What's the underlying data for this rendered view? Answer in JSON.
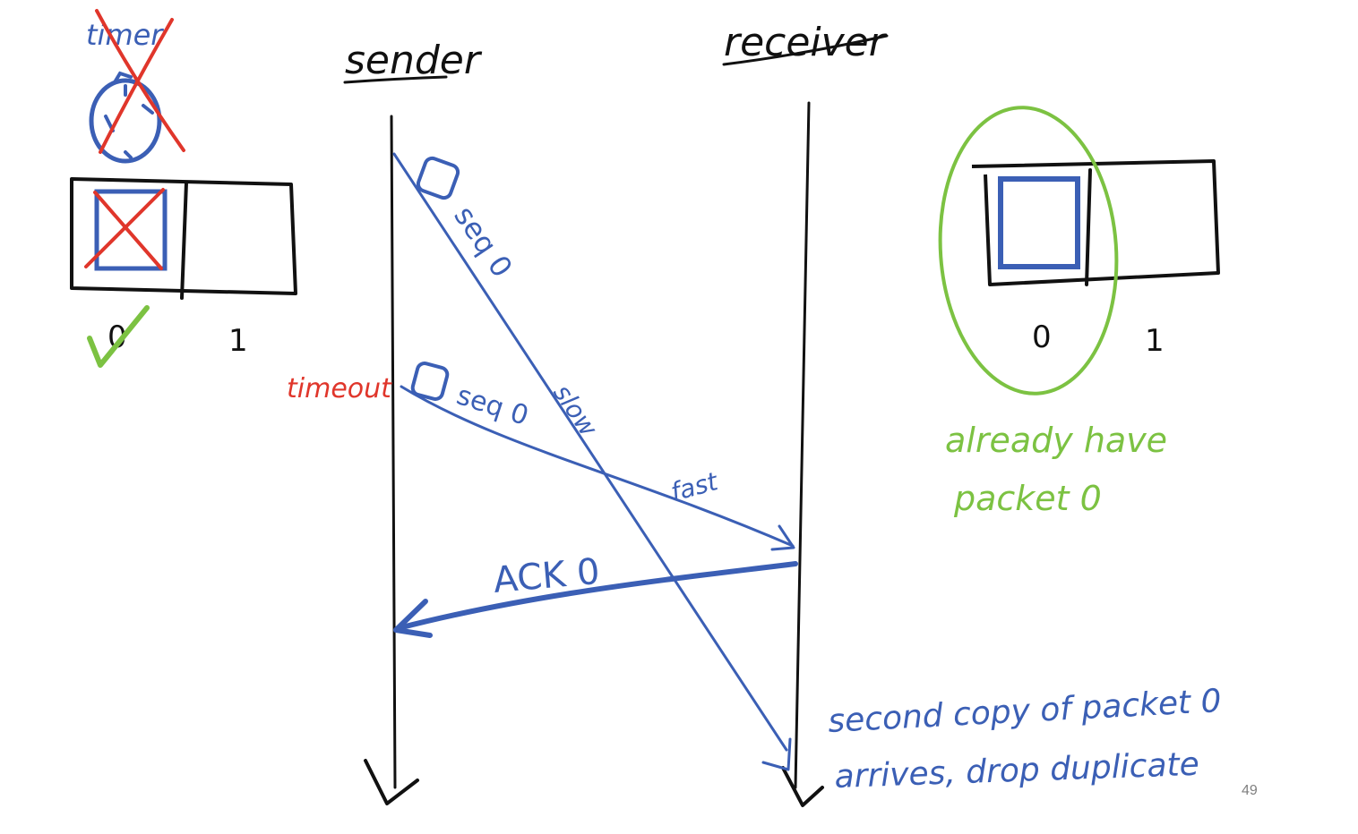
{
  "columns": {
    "sender": "sender",
    "receiver": "receiver"
  },
  "sender_side": {
    "timer_label": "timer",
    "slot_labels": [
      "0",
      "1"
    ]
  },
  "receiver_side": {
    "slot_labels": [
      "0",
      "1"
    ],
    "note": [
      "already have",
      "packet 0"
    ]
  },
  "messages": {
    "first_packet": "seq 0",
    "first_packet_speed": "slow",
    "timeout_label": "timeout",
    "resent_packet": "seq 0",
    "resent_packet_speed": "fast",
    "ack": "ACK 0"
  },
  "bottom_note": [
    "second copy of packet 0",
    "arrives, drop duplicate"
  ],
  "page_number": "49",
  "colors": {
    "ink_black": "#111111",
    "ink_blue": "#3b5fb5",
    "ink_red": "#e0362b",
    "ink_green": "#7cc242",
    "page_number": "#808080"
  }
}
